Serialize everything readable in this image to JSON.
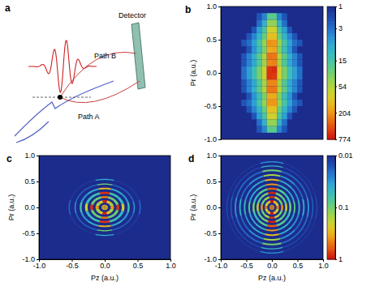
{
  "diagram": {
    "label": "a",
    "path_b": "Path B",
    "path_a": "Path A",
    "detector": "Detector"
  },
  "chart_data": [
    {
      "type": "heatmap",
      "title": "b",
      "ylabel": "Pr (a.u.)",
      "tick_labels": "y",
      "xlim": [
        -1,
        1
      ],
      "ylim": [
        -1,
        1
      ],
      "yticks": [
        {
          "value": -1,
          "label": "-1.0"
        },
        {
          "value": -0.5,
          "label": "-0.5"
        },
        {
          "value": 0,
          "label": "0.0"
        },
        {
          "value": 0.5,
          "label": "0.5"
        },
        {
          "value": 1,
          "label": "1.0"
        }
      ],
      "x_edges": [
        -0.7,
        -0.6,
        -0.5,
        -0.4,
        -0.3,
        -0.2,
        -0.1,
        0,
        0.1,
        0.2,
        0.3,
        0.4,
        0.5,
        0.6,
        0.7
      ],
      "y_edges": [
        -0.9,
        -0.8,
        -0.7,
        -0.6,
        -0.5,
        -0.4,
        -0.3,
        -0.2,
        -0.1,
        0,
        0.1,
        0.2,
        0.3,
        0.4,
        0.5,
        0.6,
        0.7,
        0.8,
        0.9
      ],
      "values": [
        [
          1,
          1,
          1,
          1,
          2,
          4,
          20,
          20,
          4,
          2,
          1,
          1,
          1,
          1
        ],
        [
          1,
          1,
          1,
          1,
          3,
          8,
          40,
          40,
          8,
          3,
          1,
          1,
          1,
          1
        ],
        [
          1,
          1,
          1,
          2,
          6,
          16,
          80,
          80,
          16,
          6,
          2,
          1,
          1,
          1
        ],
        [
          1,
          1,
          2,
          4,
          9,
          24,
          120,
          120,
          24,
          9,
          4,
          2,
          1,
          1
        ],
        [
          1,
          2,
          3,
          6,
          15,
          40,
          200,
          200,
          40,
          15,
          6,
          3,
          2,
          1
        ],
        [
          1,
          1,
          2,
          5,
          12,
          32,
          160,
          160,
          32,
          12,
          5,
          2,
          1,
          1
        ],
        [
          1,
          2,
          4,
          8,
          21,
          56,
          280,
          280,
          56,
          21,
          8,
          4,
          2,
          1
        ],
        [
          1,
          2,
          4,
          7,
          18,
          48,
          240,
          240,
          48,
          18,
          7,
          4,
          2,
          1
        ],
        [
          1,
          3,
          6,
          12,
          30,
          80,
          560,
          520,
          80,
          30,
          12,
          6,
          3,
          1
        ],
        [
          1,
          3,
          6,
          12,
          30,
          80,
          540,
          600,
          80,
          30,
          12,
          6,
          3,
          1
        ],
        [
          1,
          2,
          4,
          7,
          18,
          48,
          240,
          250,
          48,
          18,
          7,
          4,
          2,
          1
        ],
        [
          1,
          2,
          4,
          8,
          21,
          56,
          290,
          280,
          56,
          21,
          8,
          4,
          2,
          1
        ],
        [
          1,
          1,
          2,
          5,
          12,
          32,
          160,
          170,
          32,
          12,
          5,
          2,
          1,
          1
        ],
        [
          1,
          2,
          3,
          6,
          15,
          40,
          210,
          200,
          40,
          15,
          6,
          3,
          2,
          1
        ],
        [
          1,
          1,
          2,
          4,
          9,
          24,
          120,
          120,
          24,
          9,
          4,
          2,
          1,
          1
        ],
        [
          1,
          1,
          1,
          2,
          6,
          16,
          80,
          80,
          16,
          6,
          2,
          1,
          1,
          1
        ],
        [
          1,
          1,
          1,
          1,
          3,
          8,
          40,
          40,
          8,
          3,
          1,
          1,
          1,
          1
        ],
        [
          1,
          1,
          1,
          1,
          2,
          4,
          20,
          20,
          4,
          2,
          1,
          1,
          1,
          1
        ]
      ],
      "colorbar": {
        "range": [
          1,
          774
        ],
        "ticks": [
          1,
          3,
          15,
          54,
          204,
          774
        ],
        "log": true
      }
    },
    {
      "type": "polar_heatmap",
      "title": "c",
      "xlabel": "Pz (a.u.)",
      "ylabel": "Pr (a.u.)",
      "xlim": [
        -1,
        1
      ],
      "ylim": [
        -1,
        1
      ],
      "xticks": [
        {
          "value": -1,
          "label": "-1.0"
        },
        {
          "value": -0.5,
          "label": "-0.5"
        },
        {
          "value": 0,
          "label": "0.0"
        },
        {
          "value": 0.5,
          "label": "0.5"
        },
        {
          "value": 1,
          "label": "1.0"
        }
      ],
      "yticks": [
        {
          "value": -1,
          "label": "-1.0"
        },
        {
          "value": -0.5,
          "label": "-0.5"
        },
        {
          "value": 0,
          "label": "0.0"
        },
        {
          "value": 0.5,
          "label": "0.5"
        },
        {
          "value": 1,
          "label": "1.0"
        }
      ],
      "color_range": [
        0.01,
        1
      ],
      "log": true,
      "theta_edges": [
        -15,
        15,
        45,
        75,
        105,
        135,
        165,
        195,
        225,
        255,
        285,
        315,
        345
      ],
      "rings": [
        {
          "r_edges": [
            0,
            0.05
          ],
          "values": [
            0.3,
            0.3,
            0.3,
            0.3,
            0.3,
            0.3,
            0.3,
            0.3,
            0.3,
            0.3,
            0.3,
            0.3
          ]
        },
        {
          "r_edges": [
            0.09,
            0.14
          ],
          "values": [
            0.4,
            0.15,
            0.25,
            0.9,
            0.25,
            0.15,
            0.4,
            0.15,
            0.25,
            0.9,
            0.25,
            0.15
          ]
        },
        {
          "r_edges": [
            0.18,
            0.22
          ],
          "values": [
            0.8,
            0.1,
            0.1,
            0.5,
            0.1,
            0.1,
            0.8,
            0.1,
            0.1,
            0.5,
            0.1,
            0.1
          ]
        },
        {
          "r_edges": [
            0.26,
            0.3
          ],
          "values": [
            0.2,
            0.05,
            0.06,
            0.8,
            0.06,
            0.05,
            0.2,
            0.05,
            0.06,
            0.8,
            0.06,
            0.05
          ]
        },
        {
          "r_edges": [
            0.35,
            0.38
          ],
          "values": [
            0.06,
            0.03,
            0.04,
            0.3,
            0.04,
            0.03,
            0.06,
            0.03,
            0.04,
            0.3,
            0.04,
            0.03
          ]
        },
        {
          "r_edges": [
            0.44,
            0.46
          ],
          "values": [
            0.03,
            0.02,
            0.02,
            0.1,
            0.02,
            0.02,
            0.03,
            0.02,
            0.02,
            0.1,
            0.02,
            0.02
          ]
        },
        {
          "r_edges": [
            0.53,
            0.55
          ],
          "values": [
            0.02,
            0.012,
            0.012,
            0.04,
            0.012,
            0.012,
            0.02,
            0.012,
            0.012,
            0.04,
            0.012,
            0.012
          ]
        }
      ]
    },
    {
      "type": "polar_heatmap",
      "title": "d",
      "xlabel": "Pz (a.u.)",
      "ylabel": "Pr (a.u.)",
      "xlim": [
        -1,
        1
      ],
      "ylim": [
        -1,
        1
      ],
      "xticks": [
        {
          "value": -1,
          "label": "-1.0"
        },
        {
          "value": -0.5,
          "label": "-0.5"
        },
        {
          "value": 0,
          "label": "0.0"
        },
        {
          "value": 0.5,
          "label": "0.5"
        },
        {
          "value": 1,
          "label": "1.0"
        }
      ],
      "yticks": [
        {
          "value": -1,
          "label": "-1.0"
        },
        {
          "value": -0.5,
          "label": "-0.5"
        },
        {
          "value": 0,
          "label": "0.0"
        },
        {
          "value": 0.5,
          "label": "0.5"
        },
        {
          "value": 1,
          "label": "1.0"
        }
      ],
      "theta_edges": [
        -15,
        15,
        45,
        75,
        105,
        135,
        165,
        195,
        225,
        255,
        285,
        315,
        345
      ],
      "rings": [
        {
          "r_edges": [
            0,
            0.05
          ],
          "values": [
            0.4,
            0.4,
            0.4,
            0.4,
            0.4,
            0.4,
            0.4,
            0.4,
            0.4,
            0.4,
            0.4,
            0.4
          ]
        },
        {
          "r_edges": [
            0.09,
            0.14
          ],
          "values": [
            0.5,
            0.2,
            0.3,
            1,
            0.3,
            0.2,
            0.5,
            0.2,
            0.3,
            1,
            0.3,
            0.2
          ]
        },
        {
          "r_edges": [
            0.18,
            0.22
          ],
          "values": [
            0.4,
            0.1,
            0.15,
            0.8,
            0.15,
            0.1,
            0.4,
            0.1,
            0.15,
            0.8,
            0.15,
            0.1
          ]
        },
        {
          "r_edges": [
            0.26,
            0.3
          ],
          "values": [
            0.2,
            0.08,
            0.1,
            0.9,
            0.1,
            0.08,
            0.2,
            0.08,
            0.1,
            0.9,
            0.1,
            0.08
          ]
        },
        {
          "r_edges": [
            0.34,
            0.38
          ],
          "values": [
            0.1,
            0.05,
            0.08,
            0.6,
            0.08,
            0.05,
            0.1,
            0.05,
            0.08,
            0.6,
            0.08,
            0.05
          ]
        },
        {
          "r_edges": [
            0.43,
            0.46
          ],
          "values": [
            0.08,
            0.04,
            0.05,
            0.4,
            0.05,
            0.04,
            0.08,
            0.04,
            0.05,
            0.4,
            0.05,
            0.04
          ]
        },
        {
          "r_edges": [
            0.52,
            0.55
          ],
          "values": [
            0.05,
            0.03,
            0.04,
            0.3,
            0.04,
            0.03,
            0.05,
            0.03,
            0.04,
            0.3,
            0.04,
            0.03
          ]
        },
        {
          "r_edges": [
            0.61,
            0.64
          ],
          "values": [
            0.04,
            0.02,
            0.03,
            0.15,
            0.03,
            0.02,
            0.04,
            0.02,
            0.03,
            0.15,
            0.03,
            0.02
          ]
        },
        {
          "r_edges": [
            0.7,
            0.73
          ],
          "values": [
            0.03,
            0.02,
            0.02,
            0.1,
            0.02,
            0.02,
            0.03,
            0.02,
            0.02,
            0.1,
            0.02,
            0.02
          ]
        },
        {
          "r_edges": [
            0.79,
            0.81
          ],
          "values": [
            0.02,
            0.015,
            0.015,
            0.05,
            0.015,
            0.015,
            0.02,
            0.015,
            0.015,
            0.05,
            0.015,
            0.015
          ]
        },
        {
          "r_edges": [
            0.87,
            0.89
          ],
          "values": [
            0.015,
            0.012,
            0.012,
            0.03,
            0.012,
            0.012,
            0.015,
            0.012,
            0.012,
            0.03,
            0.012,
            0.012
          ]
        }
      ],
      "colorbar": {
        "range": [
          0.01,
          1
        ],
        "ticks": [
          0.01,
          0.1,
          1
        ],
        "log": true
      }
    }
  ]
}
